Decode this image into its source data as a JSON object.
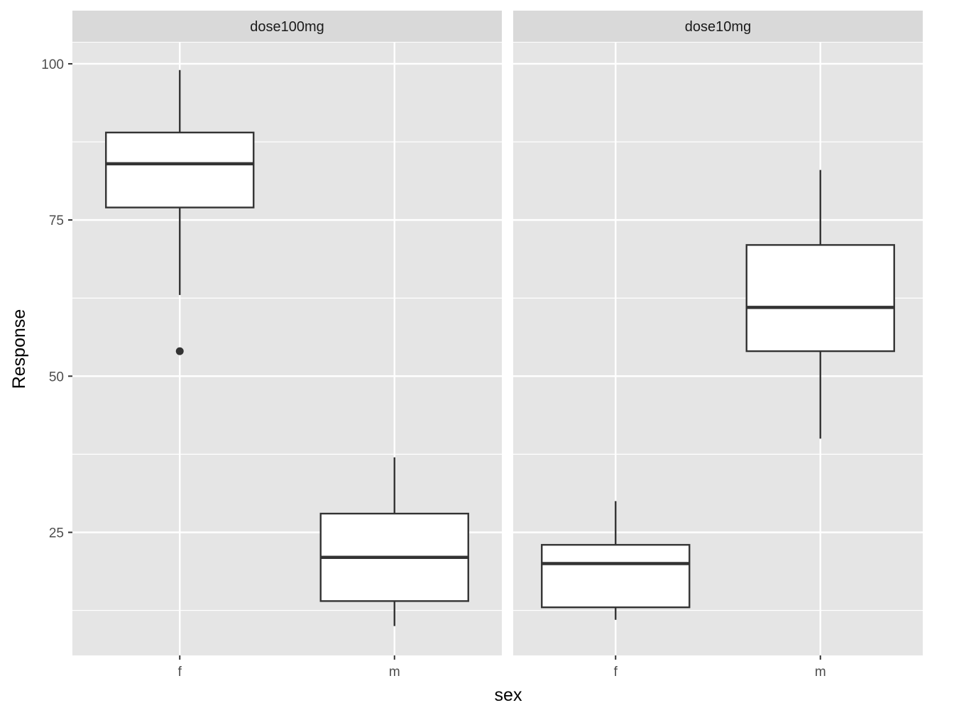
{
  "chart_data": {
    "type": "boxplot",
    "xlabel": "sex",
    "ylabel": "Response",
    "ylim": [
      5.3,
      103.4
    ],
    "y_ticks": [
      25,
      50,
      75,
      100
    ],
    "y_minor_ticks": [
      12.5,
      37.5,
      62.5,
      87.5
    ],
    "categories": [
      "f",
      "m"
    ],
    "grid": "major and minor, white on grey panel",
    "panels": [
      {
        "label": "dose100mg",
        "boxes": [
          {
            "category": "f",
            "whisker_low": 63,
            "q1": 77,
            "median": 84,
            "q3": 89,
            "whisker_high": 99,
            "outliers": [
              54
            ]
          },
          {
            "category": "m",
            "whisker_low": 10,
            "q1": 14,
            "median": 21,
            "q3": 28,
            "whisker_high": 37,
            "outliers": []
          }
        ]
      },
      {
        "label": "dose10mg",
        "boxes": [
          {
            "category": "f",
            "whisker_low": 11,
            "q1": 13,
            "median": 20,
            "q3": 23,
            "whisker_high": 30,
            "outliers": []
          },
          {
            "category": "m",
            "whisker_low": 40,
            "q1": 54,
            "median": 61,
            "q3": 71,
            "whisker_high": 83,
            "outliers": []
          }
        ]
      }
    ]
  },
  "colors": {
    "panel_background": "#e5e5e5",
    "strip_background": "#d9d9d9",
    "grid": "#ffffff",
    "box_fill": "#ffffff",
    "box_stroke": "#333333",
    "tick_label": "#4d4d4d"
  }
}
